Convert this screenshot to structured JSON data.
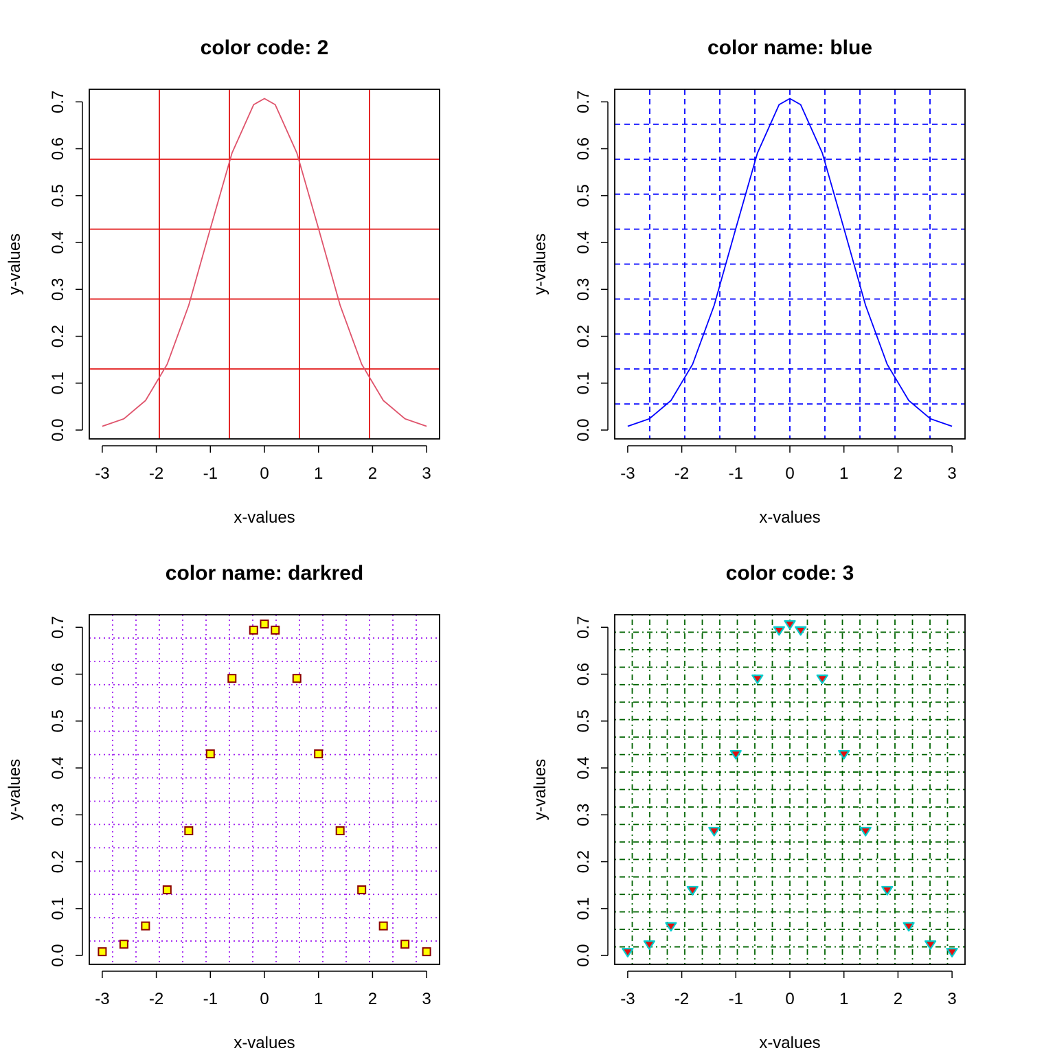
{
  "chart_data": [
    {
      "type": "line",
      "title": "color code: 2",
      "xlabel": "x-values",
      "ylabel": "y-values",
      "xlim": [
        -3.24,
        3.24
      ],
      "ylim": [
        -0.0189,
        0.7268
      ],
      "x_ticks": [
        "-3",
        "-2",
        "-1",
        "0",
        "1",
        "2",
        "3"
      ],
      "y_ticks": [
        "0.0",
        "0.1",
        "0.2",
        "0.3",
        "0.4",
        "0.5",
        "0.6",
        "0.7"
      ],
      "grid": {
        "on": true,
        "nx": 5,
        "ny": 5,
        "style": "solid",
        "color": "#e01010"
      },
      "series": [
        {
          "color": "#df536b",
          "x": [
            -3.0,
            -2.6,
            -2.2,
            -1.8,
            -1.4,
            -1.0,
            -0.6,
            -0.2,
            0.0,
            0.2,
            0.6,
            1.0,
            1.4,
            1.8,
            2.2,
            2.6,
            3.0
          ],
          "y": [
            0.008,
            0.024,
            0.063,
            0.14,
            0.266,
            0.43,
            0.591,
            0.694,
            0.707,
            0.694,
            0.591,
            0.43,
            0.266,
            0.14,
            0.063,
            0.024,
            0.008
          ]
        }
      ]
    },
    {
      "type": "line",
      "title": "color name: blue",
      "xlabel": "x-values",
      "ylabel": "y-values",
      "xlim": [
        -3.24,
        3.24
      ],
      "ylim": [
        -0.0189,
        0.7268
      ],
      "x_ticks": [
        "-3",
        "-2",
        "-1",
        "0",
        "1",
        "2",
        "3"
      ],
      "y_ticks": [
        "0.0",
        "0.1",
        "0.2",
        "0.3",
        "0.4",
        "0.5",
        "0.6",
        "0.7"
      ],
      "grid": {
        "on": true,
        "nx": 10,
        "ny": 10,
        "style": "dashed",
        "color": "#0000ff"
      },
      "series": [
        {
          "color": "#0000ff",
          "x": [
            -3.0,
            -2.6,
            -2.2,
            -1.8,
            -1.4,
            -1.0,
            -0.6,
            -0.2,
            0.0,
            0.2,
            0.6,
            1.0,
            1.4,
            1.8,
            2.2,
            2.6,
            3.0
          ],
          "y": [
            0.008,
            0.024,
            0.063,
            0.14,
            0.266,
            0.43,
            0.591,
            0.694,
            0.707,
            0.694,
            0.591,
            0.43,
            0.266,
            0.14,
            0.063,
            0.024,
            0.008
          ]
        }
      ]
    },
    {
      "type": "scatter",
      "title": "color name: darkred",
      "xlabel": "x-values",
      "ylabel": "y-values",
      "xlim": [
        -3.24,
        3.24
      ],
      "ylim": [
        -0.0189,
        0.7268
      ],
      "x_ticks": [
        "-3",
        "-2",
        "-1",
        "0",
        "1",
        "2",
        "3"
      ],
      "y_ticks": [
        "0.0",
        "0.1",
        "0.2",
        "0.3",
        "0.4",
        "0.5",
        "0.6",
        "0.7"
      ],
      "grid": {
        "on": true,
        "nx": 15,
        "ny": 15,
        "style": "dotted",
        "color": "#a020f0"
      },
      "series": [
        {
          "marker": "square",
          "color": "#8b0000",
          "fill": "#ffff00",
          "x": [
            -3.0,
            -2.6,
            -2.2,
            -1.8,
            -1.4,
            -1.0,
            -0.6,
            -0.2,
            0.0,
            0.2,
            0.6,
            1.0,
            1.4,
            1.8,
            2.2,
            2.6,
            3.0
          ],
          "y": [
            0.008,
            0.024,
            0.063,
            0.14,
            0.266,
            0.43,
            0.591,
            0.694,
            0.707,
            0.694,
            0.591,
            0.43,
            0.266,
            0.14,
            0.063,
            0.024,
            0.008
          ]
        }
      ]
    },
    {
      "type": "scatter",
      "title": "color code: 3",
      "xlabel": "x-values",
      "ylabel": "y-values",
      "xlim": [
        -3.24,
        3.24
      ],
      "ylim": [
        -0.0189,
        0.7268
      ],
      "x_ticks": [
        "-3",
        "-2",
        "-1",
        "0",
        "1",
        "2",
        "3"
      ],
      "y_ticks": [
        "0.0",
        "0.1",
        "0.2",
        "0.3",
        "0.4",
        "0.5",
        "0.6",
        "0.7"
      ],
      "grid": {
        "on": true,
        "nx": 20,
        "ny": 20,
        "style": "dotdash",
        "color": "#006400"
      },
      "series": [
        {
          "marker": "triangle-down",
          "color": "#00cccc",
          "fill": "#e01010",
          "x": [
            -3.0,
            -2.6,
            -2.2,
            -1.8,
            -1.4,
            -1.0,
            -0.6,
            -0.2,
            0.0,
            0.2,
            0.6,
            1.0,
            1.4,
            1.8,
            2.2,
            2.6,
            3.0
          ],
          "y": [
            0.008,
            0.024,
            0.063,
            0.14,
            0.266,
            0.43,
            0.591,
            0.694,
            0.707,
            0.694,
            0.591,
            0.43,
            0.266,
            0.14,
            0.063,
            0.024,
            0.008
          ]
        }
      ]
    }
  ]
}
